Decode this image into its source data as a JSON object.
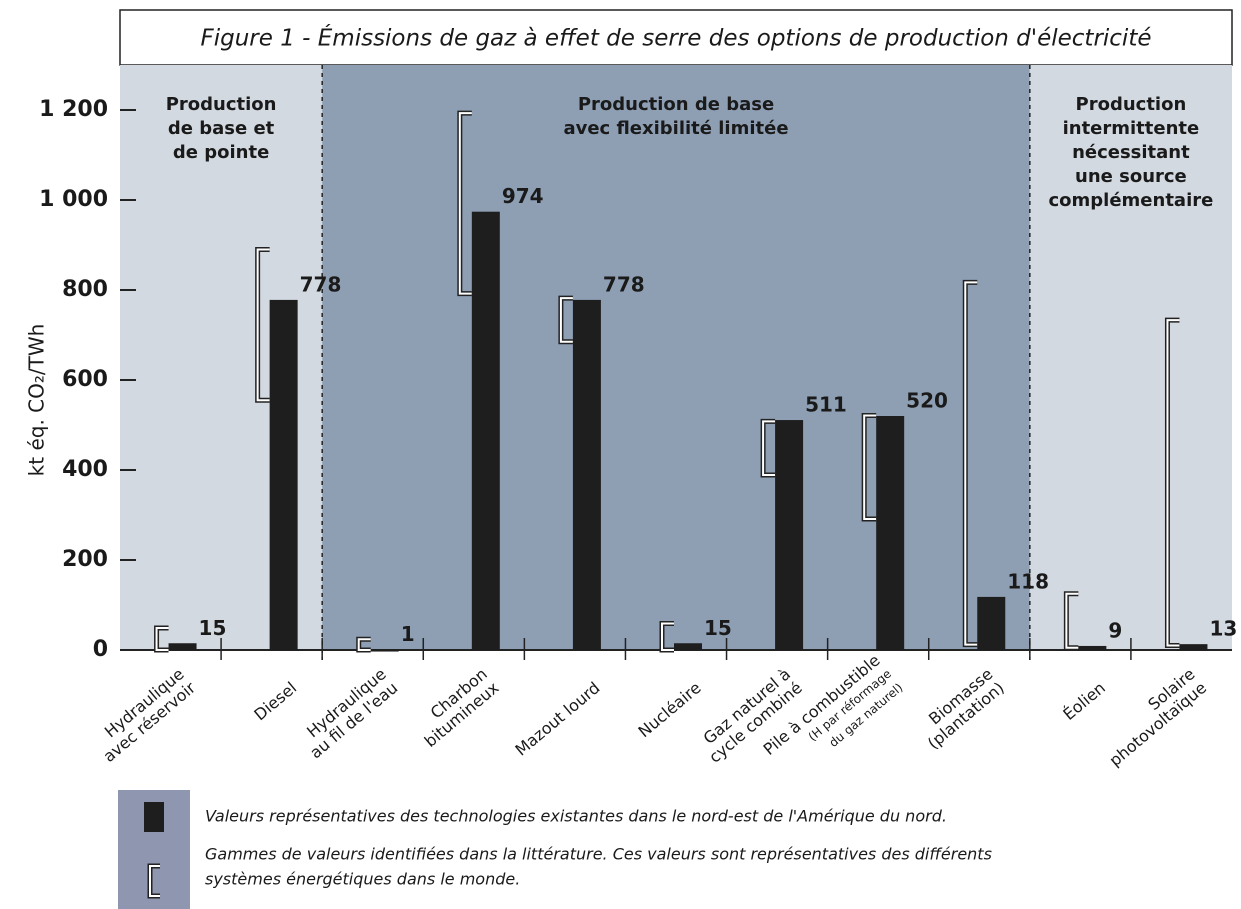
{
  "chart_data": {
    "type": "bar",
    "title": "Figure 1 - Émissions de gaz à effet de serre des options de production d'électricité",
    "y_label": "kt éq. CO₂/TWh",
    "categories": [
      [
        "Hydraulique",
        "avec réservoir"
      ],
      [
        "Diesel"
      ],
      [
        "Hydraulique",
        "au fil de l'eau"
      ],
      [
        "Charbon",
        "bitumineux"
      ],
      [
        "Mazout lourd"
      ],
      [
        "Nucléaire"
      ],
      [
        "Gaz naturel à",
        "cycle combiné"
      ],
      [
        "Pile à combustible",
        "(H par réformage",
        "du gaz naturel)"
      ],
      [
        "Biomasse",
        "(plantation)"
      ],
      [
        "Éolien"
      ],
      [
        "Solaire",
        "photovoltaïque"
      ]
    ],
    "values": [
      15,
      778,
      1,
      974,
      778,
      15,
      511,
      520,
      118,
      9,
      13
    ],
    "ranges": [
      [
        0,
        49
      ],
      [
        555,
        890
      ],
      [
        0,
        24
      ],
      [
        792,
        1193
      ],
      [
        685,
        782
      ],
      [
        0,
        59
      ],
      [
        389,
        508
      ],
      [
        291,
        521
      ],
      [
        12,
        817
      ],
      [
        5,
        125
      ],
      [
        10,
        733
      ]
    ],
    "color": "#1e1e1e",
    "ylim": [
      0,
      1300
    ],
    "yticks": [
      0,
      200,
      400,
      600,
      800,
      {
        "value": 1000,
        "label": "1 000"
      },
      {
        "value": 1200,
        "label": "1 200"
      }
    ],
    "regions": [
      {
        "label": [
          "Production",
          "de base et",
          "de pointe"
        ],
        "span": [
          0,
          1
        ],
        "color": "#d3d9e1"
      },
      {
        "label": [
          "Production de base",
          "avec flexibilité limitée"
        ],
        "span": [
          2,
          8
        ],
        "color": "#8e9fb4"
      },
      {
        "label": [
          "Production",
          "intermittente",
          "nécessitant",
          "une source",
          "complémentaire"
        ],
        "span": [
          9,
          10
        ],
        "color": "#d3d9e1"
      }
    ],
    "legend": [
      {
        "text": [
          "Valeurs représentatives des technologies existantes dans le nord-est de l'Amérique du nord."
        ]
      },
      {
        "text": [
          "Gammes de valeurs identifiées dans la littérature.  Ces valeurs sont représentatives des différents",
          "systèmes énergétiques dans le monde."
        ]
      }
    ]
  }
}
